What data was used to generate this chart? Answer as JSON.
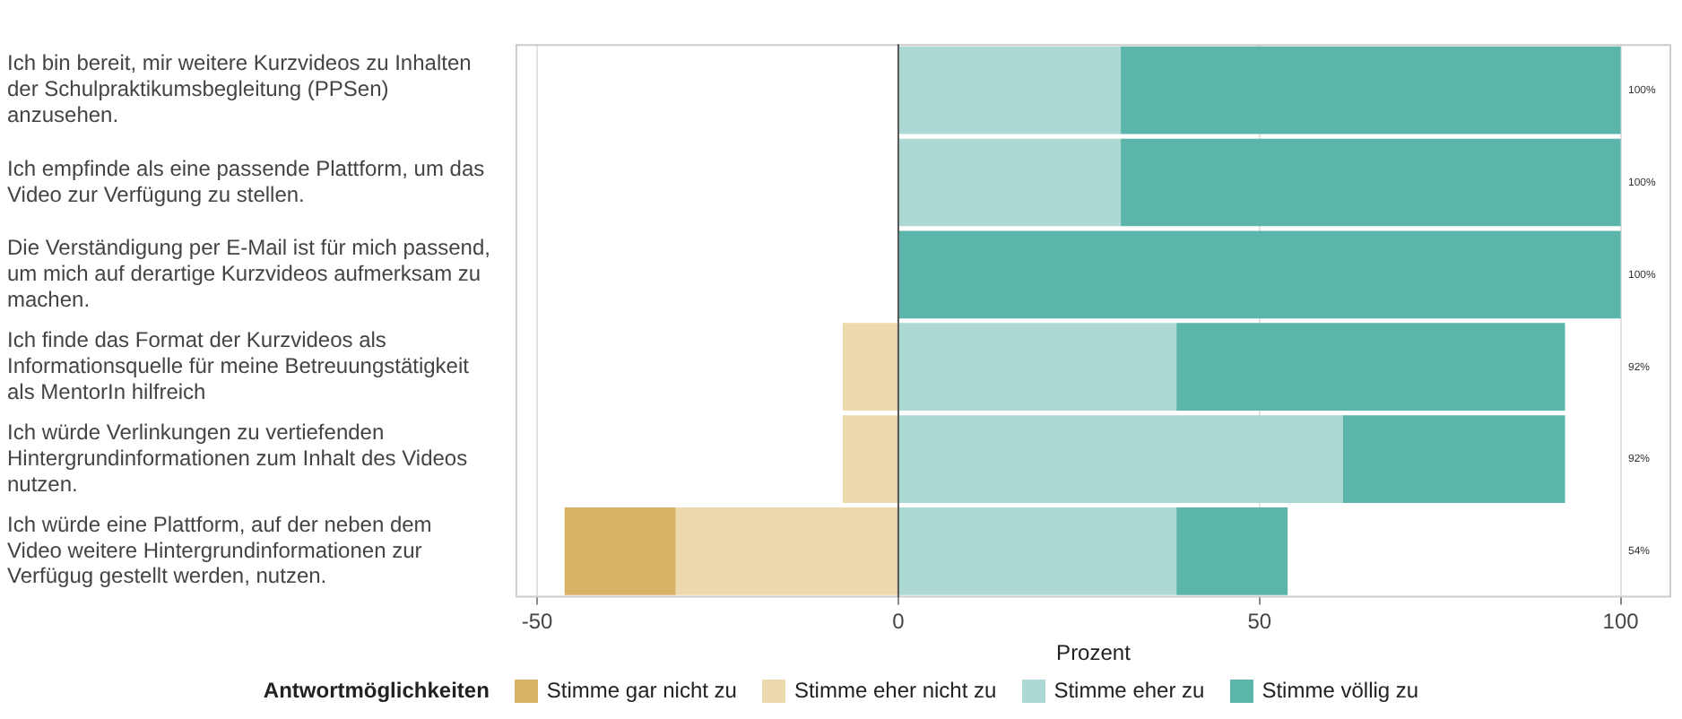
{
  "chart_data": {
    "type": "bar",
    "orientation": "horizontal",
    "stacked": true,
    "categories": [
      "Ich bin bereit, mir weitere Kurzvideos zu Inhalten der Schulpraktikumsbegleitung (PPSen) anzusehen.",
      "Ich empfinde als eine passende Plattform, um das Video zur Verfügung zu stellen.",
      "Die Verständigung per E-Mail ist für mich passend, um mich auf derartige Kurzvideos aufmerksam zu machen.",
      "Ich finde das Format der Kurzvideos als Informationsquelle für meine Betreuungstätigkeit als MentorIn hilfreich",
      "Ich würde Verlinkungen zu vertiefenden Hintergrundinformationen zum Inhalt des Videos nutzen.",
      "Ich würde eine Plattform, auf der neben dem Video weitere Hintergrundinformationen zur Verfügug gestellt werden, nutzen."
    ],
    "series": [
      {
        "name": "Stimme eher nicht zu",
        "color": "#ecd9ae",
        "values": [
          null,
          null,
          null,
          -7.7,
          -7.7,
          -30.8
        ]
      },
      {
        "name": "Stimme gar nicht zu",
        "color": "#d9b365",
        "values": [
          null,
          null,
          null,
          null,
          null,
          -15.4
        ]
      },
      {
        "name": "Stimme eher zu",
        "color": "#acd9d4",
        "values": [
          30.8,
          30.8,
          null,
          38.5,
          61.5,
          38.5
        ]
      },
      {
        "name": "Stimme völlig zu",
        "color": "#5bb5aa",
        "values": [
          69.2,
          69.2,
          100,
          53.8,
          30.8,
          15.4
        ]
      }
    ],
    "annotations": [
      "100%",
      "100%",
      "100%",
      "92%",
      "92%",
      "54%"
    ],
    "xlabel": "Prozent",
    "legend_title": "Antwortmöglichkeiten",
    "legend": "bottom",
    "xlim": [
      -53,
      107
    ],
    "xticks": [
      -50,
      0,
      50,
      100
    ],
    "grid": "x",
    "ref_lines": [
      {
        "axis": "x",
        "value": 0,
        "color": "#555555"
      }
    ]
  }
}
